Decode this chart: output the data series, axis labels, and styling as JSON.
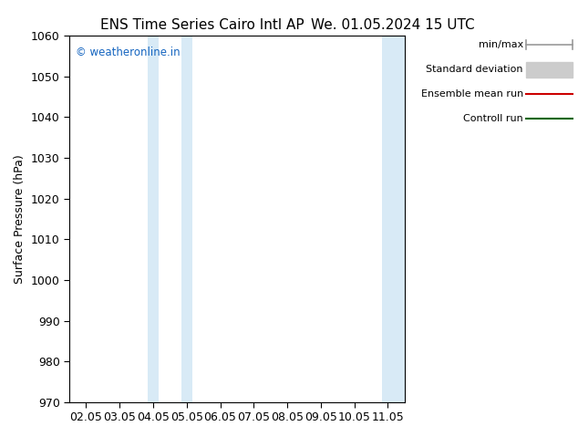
{
  "title_left": "ENS Time Series Cairo Intl AP",
  "title_right": "We. 01.05.2024 15 UTC",
  "ylabel": "Surface Pressure (hPa)",
  "ylim": [
    970,
    1060
  ],
  "yticks": [
    970,
    980,
    990,
    1000,
    1010,
    1020,
    1030,
    1040,
    1050,
    1060
  ],
  "xtick_labels": [
    "02.05",
    "03.05",
    "04.05",
    "05.05",
    "06.05",
    "07.05",
    "08.05",
    "09.05",
    "10.05",
    "11.05"
  ],
  "xtick_positions": [
    0,
    1,
    2,
    3,
    4,
    5,
    6,
    7,
    8,
    9
  ],
  "xlim": [
    -0.5,
    9.5
  ],
  "shaded_regions": [
    {
      "x_start": 1.75,
      "x_end": 2.25,
      "color": "#daeaf7"
    },
    {
      "x_start": 2.75,
      "x_end": 3.25,
      "color": "#daeaf7"
    },
    {
      "x_start": 8.75,
      "x_end": 9.25,
      "color": "#daeaf7"
    },
    {
      "x_start": 9.25,
      "x_end": 9.5,
      "color": "#daeaf7"
    }
  ],
  "watermark_text": "© weatheronline.in",
  "watermark_color": "#1565c0",
  "legend_labels": [
    "min/max",
    "Standard deviation",
    "Ensemble mean run",
    "Controll run"
  ],
  "legend_colors": [
    "#999999",
    "#bbbbbb",
    "#cc0000",
    "#006600"
  ],
  "background_color": "#ffffff",
  "title_fontsize": 11,
  "axis_fontsize": 9,
  "figsize": [
    6.34,
    4.9
  ],
  "dpi": 100
}
